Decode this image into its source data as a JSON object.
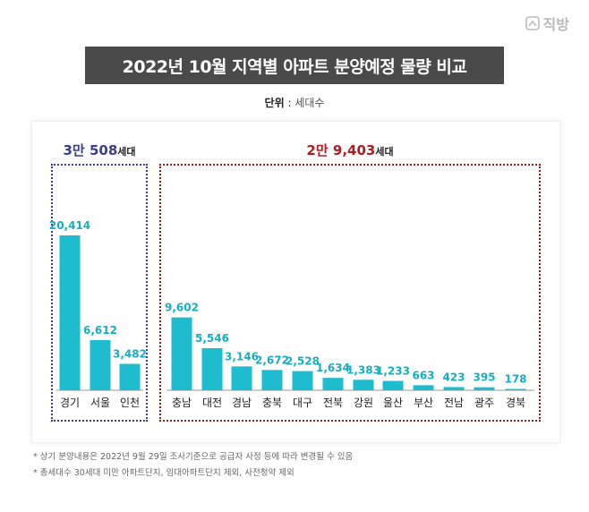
{
  "brand": {
    "name": "직방",
    "icon": "house-logo-icon"
  },
  "title": "2022년 10월 지역별 아파트 분양예정 물량 비교",
  "unit": {
    "label": "단위",
    "separator": " : ",
    "value": "세대수"
  },
  "groups": [
    {
      "key": "capital",
      "total": "3만 508",
      "suffix": "세대",
      "color": "#3b3b8f"
    },
    {
      "key": "other",
      "total": "2만 9,403",
      "suffix": "세대",
      "color": "#b01c22"
    }
  ],
  "footnotes": [
    "* 상기 분양내용은 2022년 9월 29일 조사기준으로 공급자 사정 등에 따라 변경될 수 있음",
    "* 총세대수 30세대 미만 아파트단지, 임대아파트단지 제외, 사전청약 제외"
  ],
  "chart_data": {
    "type": "bar",
    "title": "2022년 10월 지역별 아파트 분양예정 물량 비교",
    "xlabel": "",
    "ylabel": "",
    "categories": [
      "경기",
      "서울",
      "인천",
      "충남",
      "대전",
      "경남",
      "충북",
      "대구",
      "전북",
      "강원",
      "울산",
      "부산",
      "전남",
      "광주",
      "경북"
    ],
    "values": [
      20414,
      6612,
      3482,
      9602,
      5546,
      3146,
      2672,
      2528,
      1634,
      1383,
      1233,
      663,
      423,
      395,
      178
    ],
    "value_labels": [
      "20,414",
      "6,612",
      "3,482",
      "9,602",
      "5,546",
      "3,146",
      "2,672",
      "2,528",
      "1,634",
      "1,383",
      "1,233",
      "663",
      "423",
      "395",
      "178"
    ],
    "bar_color": "#1fbccf",
    "ylim": [
      0,
      20414
    ],
    "grid": false,
    "legend": "none"
  }
}
